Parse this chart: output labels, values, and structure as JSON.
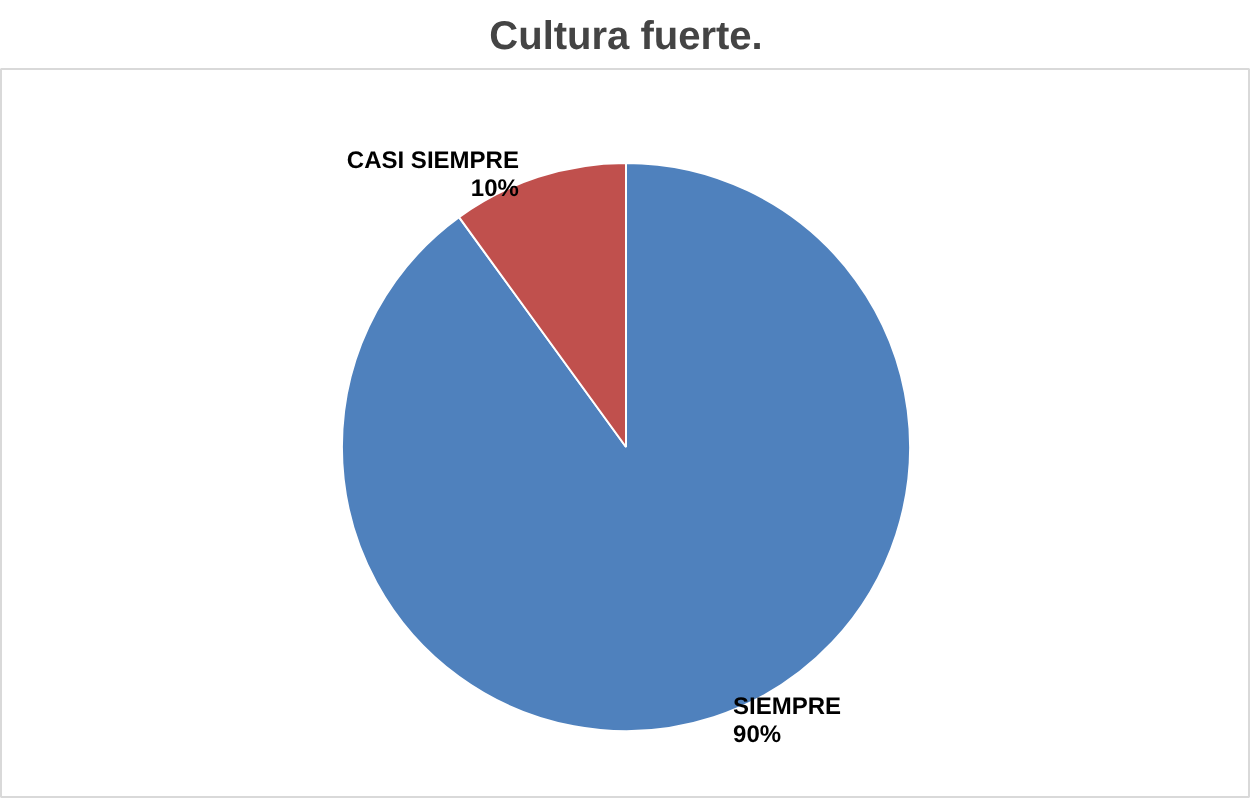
{
  "chart_data": {
    "type": "pie",
    "title": "Cultura fuerte.",
    "categories": [
      "SIEMPRE",
      "CASI SIEMPRE"
    ],
    "values": [
      90,
      10
    ],
    "colors": [
      "#4f81bd",
      "#c0504d"
    ],
    "value_labels": [
      "90%",
      "10%"
    ]
  }
}
